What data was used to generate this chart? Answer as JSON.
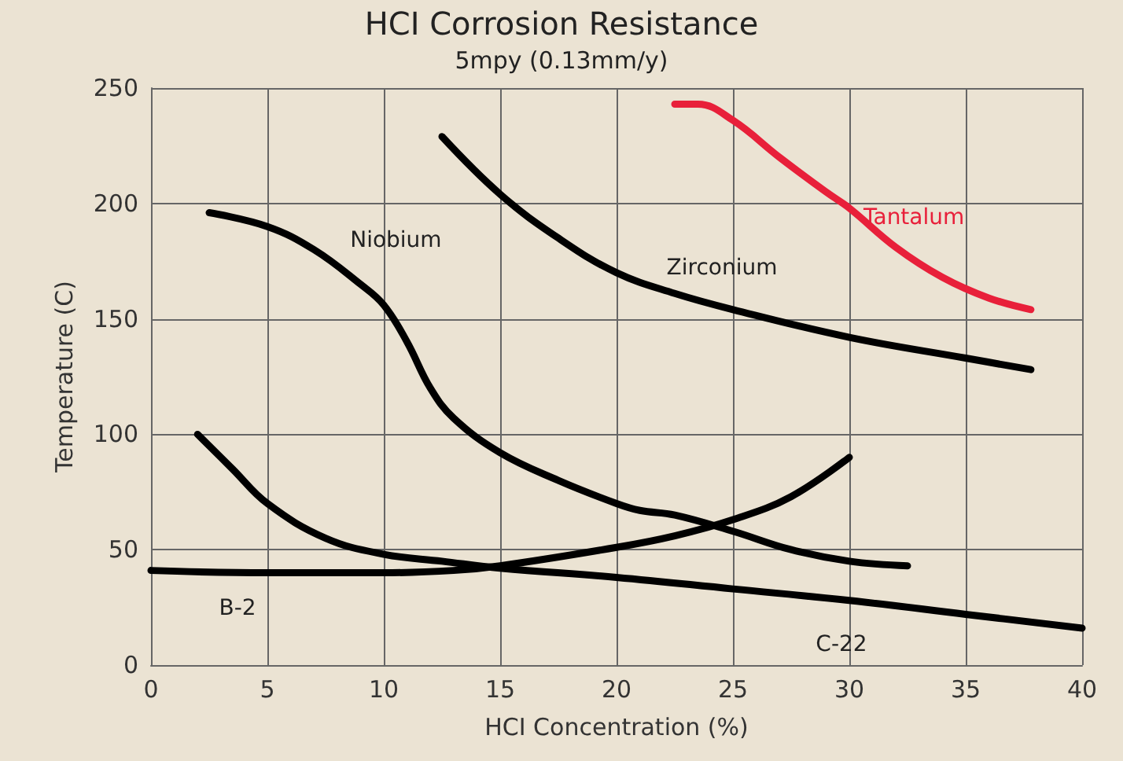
{
  "chart_data": {
    "type": "line",
    "title": "HCI Corrosion Resistance",
    "subtitle": "5mpy (0.13mm/y)",
    "xlabel": "HCI Concentration (%)",
    "ylabel": "Temperature (C)",
    "xlim": [
      0,
      40
    ],
    "xticks": [
      0,
      5,
      10,
      15,
      20,
      25,
      30,
      35,
      40
    ],
    "ylim": [
      0,
      250
    ],
    "yticks": [
      0,
      50,
      100,
      150,
      200,
      250
    ],
    "grid": true,
    "legend": false,
    "marker": "none",
    "line_style": "solid",
    "series": [
      {
        "name": "Tantalum",
        "color": "#e8203a",
        "x": [
          22.5,
          23.5,
          25,
          27,
          29,
          30,
          32,
          34,
          36,
          37.8
        ],
        "values": [
          243,
          243,
          236,
          220,
          205,
          198,
          181,
          168,
          159,
          154
        ]
      },
      {
        "name": "Zirconium",
        "color": "#000000",
        "x": [
          12.5,
          15,
          17.5,
          20,
          22.5,
          25,
          30,
          35,
          37.8
        ],
        "values": [
          229,
          204,
          185,
          170,
          161,
          154,
          142,
          133,
          128
        ]
      },
      {
        "name": "Niobium",
        "color": "#000000",
        "x": [
          2.5,
          5,
          7,
          9,
          10,
          11,
          12,
          13,
          15,
          17.5,
          20,
          21,
          22.5,
          25,
          27.5,
          30,
          32.5
        ],
        "values": [
          196,
          190,
          180,
          165,
          156,
          140,
          120,
          107,
          92,
          80,
          70,
          67,
          65,
          58,
          50,
          45,
          43
        ]
      },
      {
        "name": "B-2",
        "color": "#000000",
        "x": [
          0,
          5,
          10,
          13,
          15,
          20,
          22.5,
          25,
          27.5,
          30
        ],
        "values": [
          41,
          40,
          40,
          41,
          43,
          51,
          56,
          63,
          73,
          90
        ]
      },
      {
        "name": "C-22",
        "color": "#000000",
        "x": [
          2,
          3.5,
          5,
          7.5,
          10,
          12.5,
          15,
          20,
          25,
          30,
          35,
          40
        ],
        "values": [
          100,
          85,
          70,
          55,
          48,
          45,
          42,
          38,
          33,
          28,
          22,
          16
        ]
      }
    ]
  }
}
